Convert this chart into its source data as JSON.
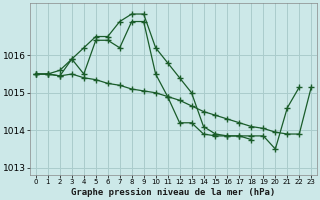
{
  "title": "Graphe pression niveau de la mer (hPa)",
  "bg_color": "#cce8e8",
  "grid_color": "#aacccc",
  "line_color": "#1a5c2a",
  "ylim": [
    1012.8,
    1017.4
  ],
  "yticks": [
    1013,
    1014,
    1015,
    1016
  ],
  "xlim": [
    -0.5,
    23.5
  ],
  "xticks": [
    0,
    1,
    2,
    3,
    4,
    5,
    6,
    7,
    8,
    9,
    10,
    11,
    12,
    13,
    14,
    15,
    16,
    17,
    18,
    19,
    20,
    21,
    22,
    23
  ],
  "series": [
    {
      "x": [
        0,
        1,
        2,
        3,
        4,
        5,
        6,
        7,
        8,
        9,
        10,
        11,
        12,
        13,
        14,
        15,
        16,
        17,
        18,
        19,
        20,
        21,
        22
      ],
      "y": [
        1015.5,
        1015.5,
        1015.6,
        1015.9,
        1016.2,
        1016.5,
        1016.5,
        1016.9,
        1017.1,
        1017.1,
        1016.2,
        1015.8,
        1015.4,
        1015.0,
        1014.1,
        1013.9,
        1013.85,
        1013.85,
        1013.85,
        1013.85,
        1013.5,
        1014.6,
        1015.15
      ]
    },
    {
      "x": [
        0,
        1,
        2,
        3,
        4,
        5,
        6,
        7,
        8,
        9,
        10,
        11,
        12,
        13,
        14,
        15,
        16,
        17,
        18,
        19,
        20,
        21,
        22,
        23
      ],
      "y": [
        1015.5,
        1015.5,
        1015.45,
        1015.5,
        1015.4,
        1015.35,
        1015.25,
        1015.2,
        1015.1,
        1015.05,
        1015.0,
        1014.9,
        1014.8,
        1014.65,
        1014.5,
        1014.4,
        1014.3,
        1014.2,
        1014.1,
        1014.05,
        1013.95,
        1013.9,
        1013.9,
        1015.15
      ]
    },
    {
      "x": [
        0,
        1,
        2,
        3,
        4,
        5,
        6,
        7,
        8,
        9,
        10,
        11,
        12,
        13,
        14,
        15,
        16,
        17,
        18
      ],
      "y": [
        1015.5,
        1015.5,
        1015.45,
        1015.9,
        1015.5,
        1016.4,
        1016.4,
        1016.2,
        1016.9,
        1016.9,
        1015.5,
        1014.9,
        1014.2,
        1014.2,
        1013.9,
        1013.85,
        1013.85,
        1013.85,
        1013.75
      ]
    }
  ]
}
